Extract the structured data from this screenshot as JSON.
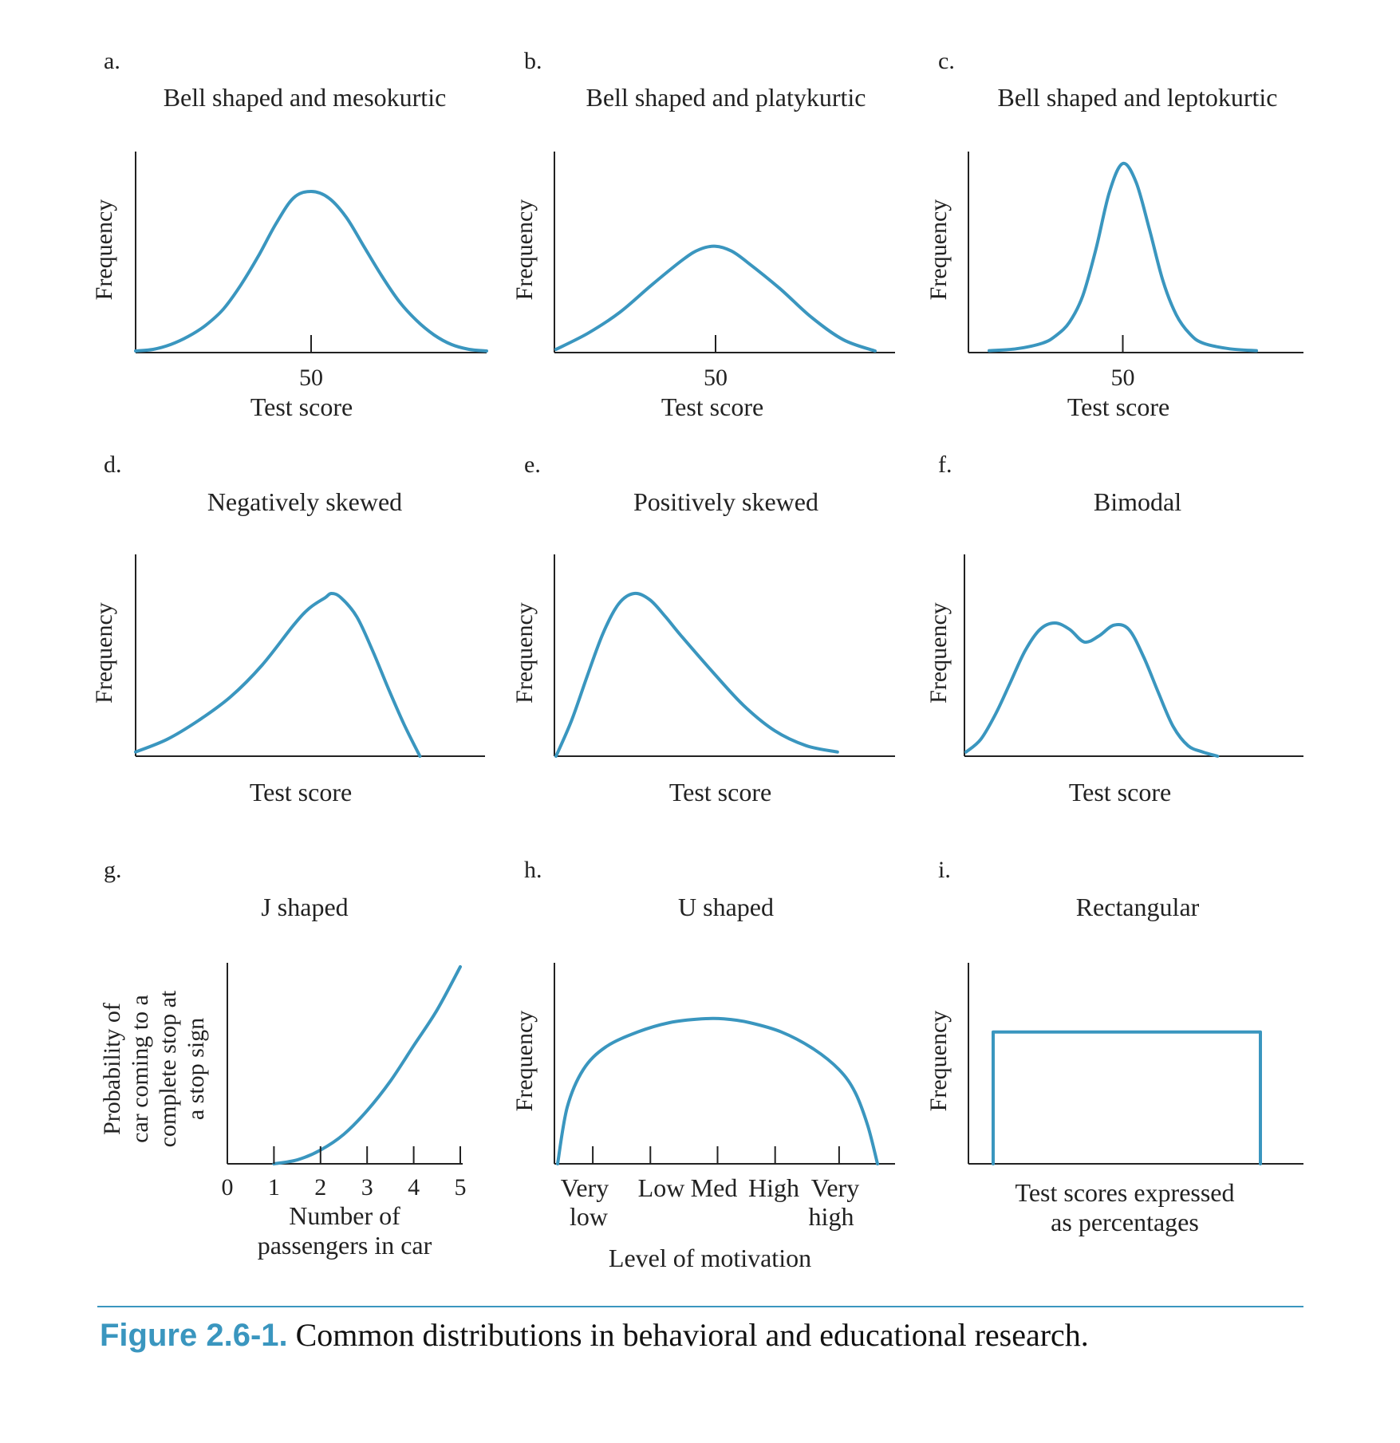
{
  "figure": {
    "label": "Figure 2.6-1.",
    "caption": "Common distributions in behavioral and educational research."
  },
  "colors": {
    "curve": "#3a96bf",
    "axis": "#222222",
    "caption_label": "#3a96bf"
  },
  "chart_data": [
    {
      "type": "line",
      "panel": "a.",
      "title": "Bell shaped and mesokurtic",
      "xlabel": "Test score",
      "ylabel": "Frequency",
      "xlim": [
        0,
        100
      ],
      "ylim": [
        0,
        1
      ],
      "ticks": [
        50
      ],
      "tick_labels": [
        "50"
      ],
      "x": [
        0,
        5,
        10,
        15,
        20,
        25,
        30,
        35,
        40,
        45,
        50,
        55,
        60,
        65,
        70,
        75,
        80,
        85,
        90,
        95,
        100
      ],
      "y": [
        0.01,
        0.02,
        0.05,
        0.1,
        0.17,
        0.27,
        0.42,
        0.6,
        0.8,
        0.96,
        1.0,
        0.96,
        0.84,
        0.66,
        0.48,
        0.32,
        0.2,
        0.11,
        0.05,
        0.02,
        0.01
      ]
    },
    {
      "type": "line",
      "panel": "b.",
      "title": "Bell shaped and platykurtic",
      "xlabel": "Test score",
      "ylabel": "Frequency",
      "xlim": [
        0,
        100
      ],
      "ylim": [
        0,
        1
      ],
      "ticks": [
        50
      ],
      "tick_labels": [
        "50"
      ],
      "x": [
        0,
        10,
        20,
        30,
        40,
        45,
        50,
        55,
        60,
        70,
        80,
        90,
        100
      ],
      "y": [
        0.02,
        0.12,
        0.25,
        0.42,
        0.58,
        0.64,
        0.66,
        0.63,
        0.56,
        0.4,
        0.22,
        0.08,
        0.01
      ]
    },
    {
      "type": "line",
      "panel": "c.",
      "title": "Bell shaped and leptokurtic",
      "xlabel": "Test score",
      "ylabel": "Frequency",
      "xlim": [
        0,
        100
      ],
      "ylim": [
        0,
        1
      ],
      "ticks": [
        50
      ],
      "tick_labels": [
        "50"
      ],
      "x": [
        0,
        10,
        20,
        25,
        30,
        35,
        40,
        45,
        50,
        55,
        60,
        65,
        70,
        75,
        80,
        90,
        100
      ],
      "y": [
        0.01,
        0.02,
        0.05,
        0.09,
        0.16,
        0.3,
        0.55,
        0.85,
        1.0,
        0.9,
        0.65,
        0.38,
        0.2,
        0.1,
        0.05,
        0.02,
        0.01
      ]
    },
    {
      "type": "line",
      "panel": "d.",
      "title": "Negatively skewed",
      "xlabel": "Test score",
      "ylabel": "Frequency",
      "xlim": [
        0,
        100
      ],
      "ylim": [
        0,
        1
      ],
      "x": [
        0,
        10,
        20,
        30,
        40,
        50,
        55,
        60,
        62,
        65,
        70,
        75,
        80,
        85,
        90
      ],
      "y": [
        0.02,
        0.08,
        0.17,
        0.28,
        0.43,
        0.62,
        0.7,
        0.75,
        0.77,
        0.75,
        0.66,
        0.5,
        0.32,
        0.15,
        0.0
      ]
    },
    {
      "type": "line",
      "panel": "e.",
      "title": "Positively skewed",
      "xlabel": "Test score",
      "ylabel": "Frequency",
      "xlim": [
        0,
        100
      ],
      "ylim": [
        0,
        1
      ],
      "x": [
        0,
        5,
        10,
        15,
        20,
        25,
        30,
        35,
        40,
        50,
        60,
        70,
        80,
        90
      ],
      "y": [
        0.0,
        0.17,
        0.38,
        0.58,
        0.72,
        0.77,
        0.74,
        0.66,
        0.57,
        0.4,
        0.24,
        0.12,
        0.05,
        0.02
      ]
    },
    {
      "type": "line",
      "panel": "f.",
      "title": "Bimodal",
      "xlabel": "Test score",
      "ylabel": "Frequency",
      "xlim": [
        0,
        100
      ],
      "ylim": [
        0,
        1
      ],
      "x": [
        0,
        5,
        10,
        15,
        20,
        25,
        30,
        35,
        40,
        45,
        50,
        55,
        60,
        65,
        70,
        75,
        80,
        85
      ],
      "y": [
        0.02,
        0.08,
        0.2,
        0.35,
        0.5,
        0.6,
        0.63,
        0.6,
        0.54,
        0.57,
        0.62,
        0.6,
        0.47,
        0.3,
        0.14,
        0.05,
        0.02,
        0.0
      ]
    },
    {
      "type": "line",
      "panel": "g.",
      "title": "J shaped",
      "xlabel": "Number of passengers in car",
      "ylabel": "Probability of car coming to a complete stop at a stop sign",
      "xlim": [
        0,
        5
      ],
      "ylim": [
        0,
        1
      ],
      "ticks": [
        0,
        1,
        2,
        3,
        4,
        5
      ],
      "tick_labels": [
        "0",
        "1",
        "2",
        "3",
        "4",
        "5"
      ],
      "x": [
        1,
        1.5,
        2,
        2.5,
        3,
        3.5,
        4,
        4.5,
        5
      ],
      "y": [
        0.0,
        0.02,
        0.07,
        0.15,
        0.27,
        0.42,
        0.6,
        0.78,
        1.0
      ]
    },
    {
      "type": "line",
      "panel": "h.",
      "title": "U shaped",
      "xlabel": "Level of motivation",
      "ylabel": "Frequency",
      "xlim": [
        0,
        100
      ],
      "ylim": [
        0,
        1
      ],
      "ticks": [
        11,
        29,
        50,
        68,
        88
      ],
      "tick_labels": [
        "Very low",
        "Low",
        "Med",
        "High",
        "Very high"
      ],
      "x": [
        0,
        3,
        8,
        15,
        25,
        35,
        45,
        52,
        60,
        70,
        80,
        88,
        93,
        97,
        100
      ],
      "y": [
        0.0,
        0.3,
        0.5,
        0.62,
        0.7,
        0.75,
        0.77,
        0.77,
        0.75,
        0.7,
        0.61,
        0.5,
        0.38,
        0.2,
        0.0
      ]
    },
    {
      "type": "line",
      "panel": "i.",
      "title": "Rectangular",
      "xlabel": "Test scores expressed as percentages",
      "ylabel": "Frequency",
      "xlim": [
        0,
        100
      ],
      "ylim": [
        0,
        1
      ],
      "x": [
        0,
        0,
        100,
        100
      ],
      "y": [
        0,
        0.7,
        0.7,
        0
      ]
    }
  ]
}
